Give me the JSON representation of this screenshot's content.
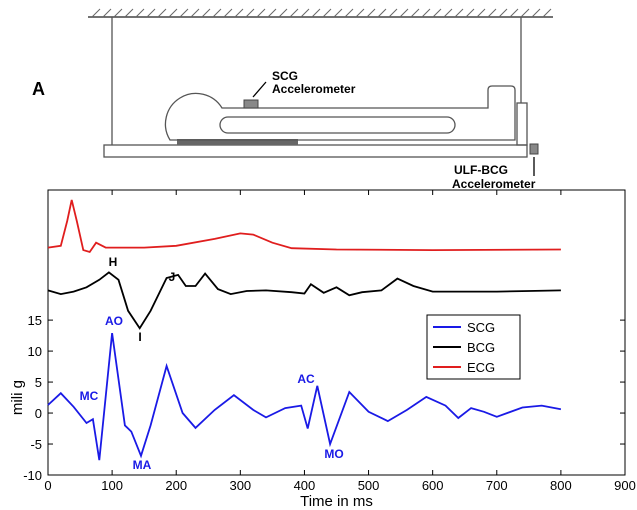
{
  "diagram": {
    "panel_label": "A",
    "scg_label": [
      "SCG",
      "Accelerometer"
    ],
    "bcg_label": [
      "ULF-BCG",
      "Accelerometer"
    ]
  },
  "chart_data": {
    "type": "line",
    "xlabel": "Time in ms",
    "ylabel": "mili g",
    "xlim": [
      0,
      900
    ],
    "ylim": [
      -10,
      36
    ],
    "xticks": [
      0,
      100,
      200,
      300,
      400,
      500,
      600,
      700,
      800,
      900
    ],
    "yticks": [
      -10,
      -5,
      0,
      5,
      10,
      15
    ],
    "legend": "upper right",
    "annotations": [
      "MC",
      "AO",
      "MA",
      "AC",
      "MO",
      "H",
      "I",
      "J"
    ],
    "series": [
      {
        "name": "SCG",
        "color": "#1a1ae6",
        "x": [
          0,
          20,
          40,
          60,
          70,
          80,
          100,
          120,
          130,
          145,
          160,
          185,
          210,
          230,
          260,
          290,
          320,
          340,
          370,
          395,
          405,
          420,
          440,
          470,
          500,
          530,
          560,
          590,
          620,
          640,
          660,
          680,
          700,
          740,
          770,
          800
        ],
        "values": [
          1.3,
          3.2,
          1,
          -1.6,
          -1,
          -7.6,
          12.9,
          -2,
          -3,
          -6.9,
          -2,
          7.6,
          0,
          -2.4,
          0.5,
          2.9,
          0.5,
          -0.7,
          0.8,
          1.2,
          -2.5,
          4.4,
          -5,
          3.4,
          0.2,
          -1.3,
          0.5,
          2.6,
          1.2,
          -0.8,
          0.8,
          0.2,
          -0.6,
          0.9,
          1.2,
          0.6
        ]
      },
      {
        "name": "BCG",
        "color": "#000000",
        "x": [
          0,
          20,
          40,
          60,
          80,
          95,
          110,
          125,
          143,
          160,
          185,
          203,
          215,
          230,
          245,
          265,
          285,
          310,
          340,
          380,
          400,
          410,
          430,
          450,
          470,
          490,
          520,
          545,
          570,
          600,
          650,
          700,
          750,
          800
        ],
        "values": [
          19.8,
          19.2,
          19.6,
          20.3,
          21.5,
          22.7,
          21.5,
          16.5,
          13.7,
          16.5,
          21.8,
          22.3,
          20.5,
          20.5,
          22.5,
          20,
          19.2,
          19.7,
          19.8,
          19.5,
          19.3,
          20.8,
          19.4,
          20.3,
          19,
          19.5,
          19.8,
          21.7,
          20.5,
          19.6,
          19.6,
          19.6,
          19.7,
          19.8
        ]
      },
      {
        "name": "ECG",
        "color": "#e01e1e",
        "x": [
          0,
          20,
          30,
          37,
          45,
          55,
          65,
          75,
          90,
          150,
          200,
          260,
          300,
          320,
          350,
          380,
          450,
          600,
          800
        ],
        "values": [
          26.7,
          27,
          31,
          34.4,
          31,
          26.3,
          26,
          27.5,
          26.7,
          26.7,
          27,
          28.1,
          29,
          28.8,
          27.5,
          26.6,
          26.4,
          26.3,
          26.4
        ]
      }
    ]
  }
}
